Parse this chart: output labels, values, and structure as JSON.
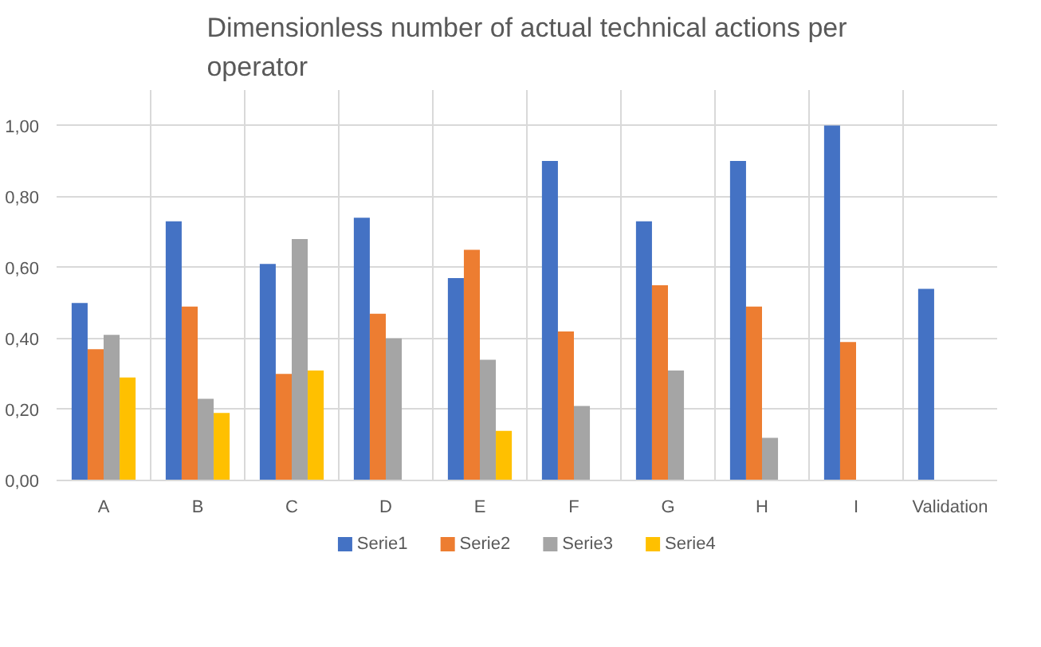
{
  "chart_data": {
    "type": "bar",
    "title": "Dimensionless number of actual technical actions per operator",
    "categories": [
      "A",
      "B",
      "C",
      "D",
      "E",
      "F",
      "G",
      "H",
      "I",
      "Validation"
    ],
    "series": [
      {
        "name": "Serie1",
        "color": "#4472c4",
        "values": [
          0.5,
          0.73,
          0.61,
          0.74,
          0.57,
          0.9,
          0.73,
          0.9,
          1.0,
          0.54
        ]
      },
      {
        "name": "Serie2",
        "color": "#ed7d31",
        "values": [
          0.37,
          0.49,
          0.3,
          0.47,
          0.65,
          0.42,
          0.55,
          0.49,
          0.39,
          null
        ]
      },
      {
        "name": "Serie3",
        "color": "#a5a5a5",
        "values": [
          0.41,
          0.23,
          0.68,
          0.4,
          0.34,
          0.21,
          0.31,
          0.12,
          null,
          null
        ]
      },
      {
        "name": "Serie4",
        "color": "#ffc000",
        "values": [
          0.29,
          0.19,
          0.31,
          null,
          0.14,
          null,
          null,
          null,
          null,
          null
        ]
      }
    ],
    "ylim": [
      0,
      1.1
    ],
    "yticks": [
      {
        "value": 0,
        "label": "0,00"
      },
      {
        "value": 0.2,
        "label": "0,20"
      },
      {
        "value": 0.4,
        "label": "0,40"
      },
      {
        "value": 0.6,
        "label": "0,60"
      },
      {
        "value": 0.8,
        "label": "0,80"
      },
      {
        "value": 1.0,
        "label": "1,00"
      }
    ],
    "grid": true,
    "legend": "bottom"
  }
}
